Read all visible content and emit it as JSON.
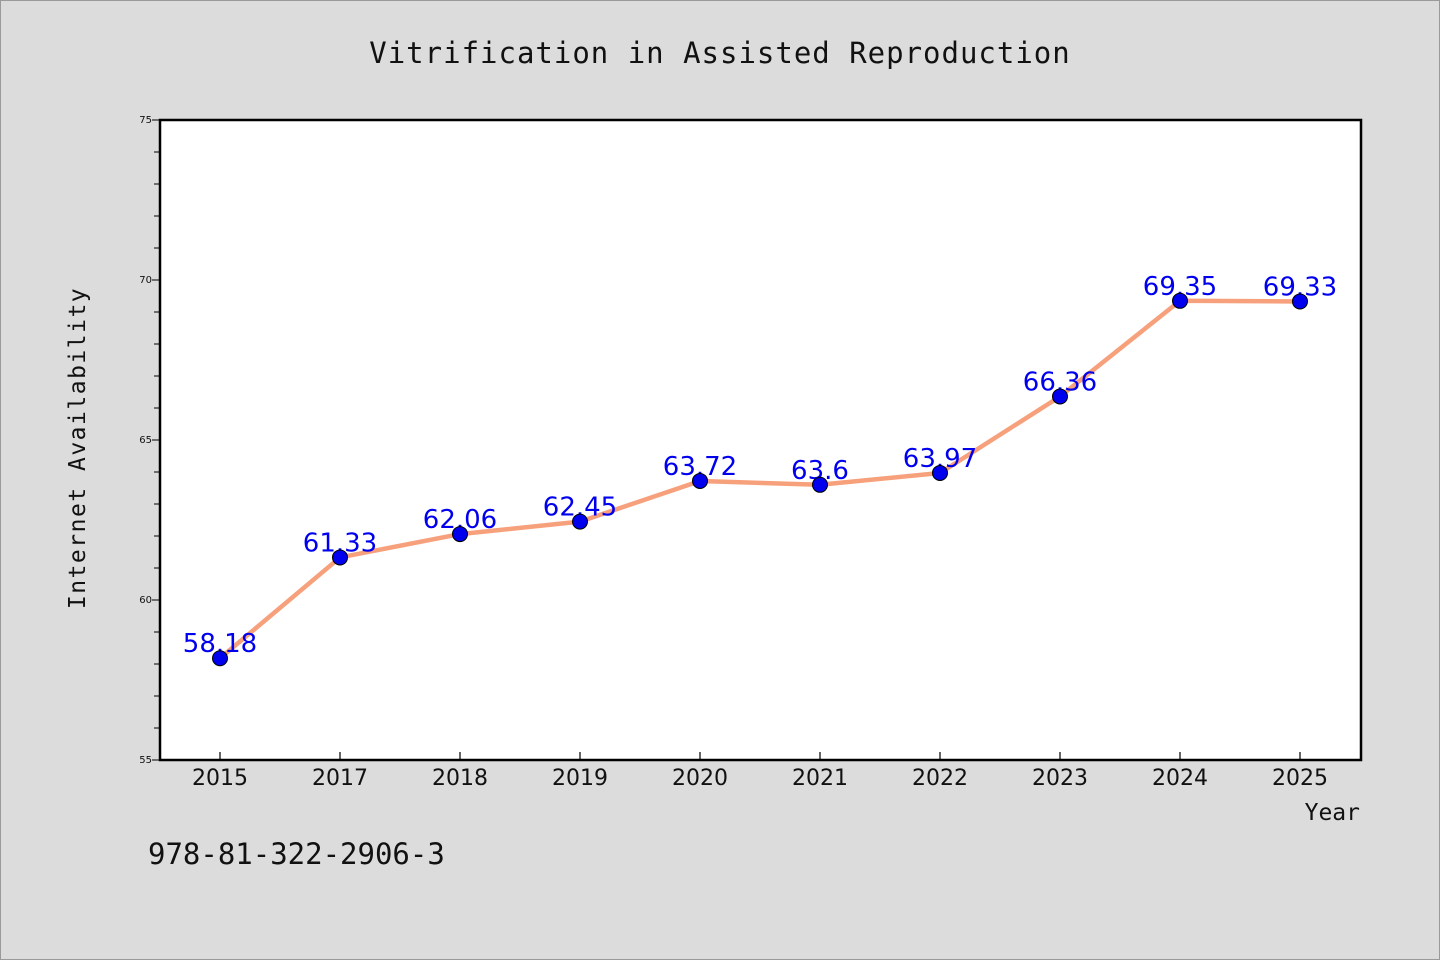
{
  "chart_data": {
    "type": "line",
    "title": "Vitrification in Assisted Reproduction",
    "xlabel": "Year",
    "ylabel": "Internet Availability",
    "categories": [
      "2015",
      "2017",
      "2018",
      "2019",
      "2020",
      "2021",
      "2022",
      "2023",
      "2024",
      "2025"
    ],
    "series": [
      {
        "values": [
          58.18,
          61.33,
          62.06,
          62.45,
          63.72,
          63.6,
          63.97,
          66.36,
          69.35,
          69.33
        ],
        "labels": [
          "58.18",
          "61.33",
          "62.06",
          "62.45",
          "63.72",
          "63.6",
          "63.97",
          "66.36",
          "69.35",
          "69.33"
        ],
        "line_color": "#f7a07c",
        "marker_color": "#0000ee"
      }
    ],
    "ylim": [
      55,
      75
    ],
    "yticks": [
      "55",
      "60",
      "65",
      "70",
      "75"
    ],
    "grid": false,
    "legend": "none"
  },
  "footer": {
    "isbn": "978-81-322-2906-3"
  }
}
